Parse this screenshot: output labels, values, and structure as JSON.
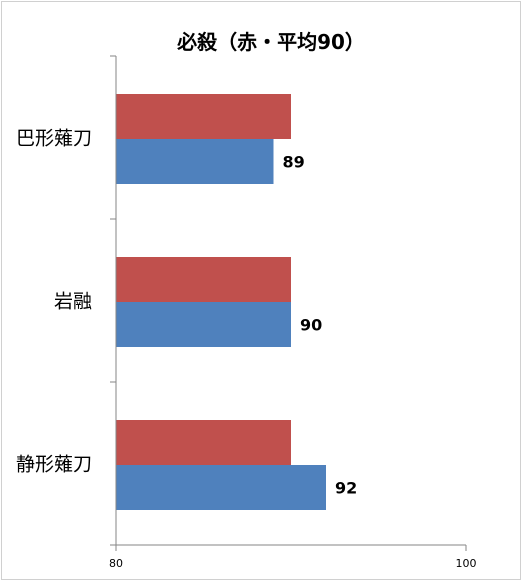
{
  "chart_data": {
    "type": "bar",
    "orientation": "horizontal",
    "title": "必殺（赤・平均90）",
    "categories": [
      "巴形薙刀",
      "岩融",
      "静形薙刀"
    ],
    "series": [
      {
        "values": [
          90,
          90,
          90
        ],
        "color": "#c0504d",
        "show_data_labels": false
      },
      {
        "values": [
          89,
          90,
          92
        ],
        "color": "#4f81bd",
        "show_data_labels": true
      }
    ],
    "xlim": [
      80,
      100
    ],
    "xticks": [
      "80",
      "100"
    ],
    "xlabel": "",
    "ylabel": "",
    "grid": false,
    "legend": "none"
  }
}
